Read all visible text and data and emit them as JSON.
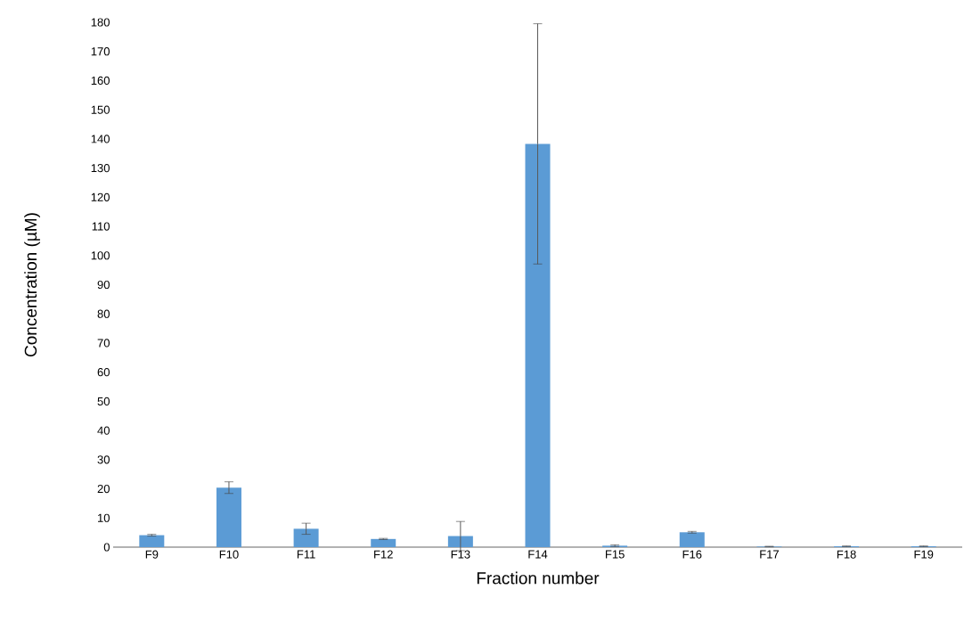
{
  "chart_data": {
    "type": "bar",
    "xlabel": "Fraction number",
    "ylabel": "Concentration (µM)",
    "categories": [
      "F9",
      "F10",
      "F11",
      "F12",
      "F13",
      "F14",
      "F15",
      "F16",
      "F17",
      "F18",
      "F19"
    ],
    "values": [
      4.1,
      20.4,
      6.3,
      2.8,
      3.8,
      138.3,
      0.5,
      5.1,
      0.2,
      0.3,
      0.3
    ],
    "errors": [
      0.3,
      2.0,
      1.9,
      0.2,
      5.0,
      41.2,
      0.3,
      0.3,
      0.1,
      0.1,
      0.1
    ],
    "color": "#5b9bd5",
    "ylim": [
      0,
      180
    ],
    "yticks": [
      0,
      10,
      20,
      30,
      40,
      50,
      60,
      70,
      80,
      90,
      100,
      110,
      120,
      130,
      140,
      150,
      160,
      170,
      180
    ],
    "grid": false
  }
}
